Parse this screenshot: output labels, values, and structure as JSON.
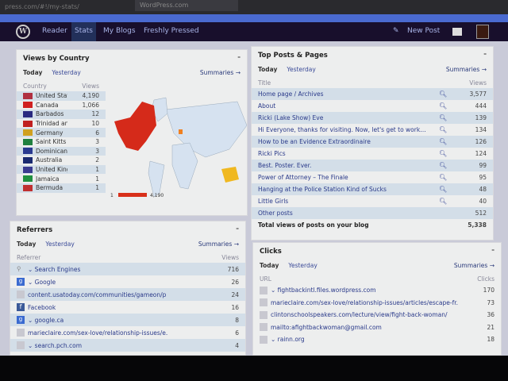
{
  "browser": {
    "url": "press.com/#!/my-stats/",
    "tab_title": "WordPress.com"
  },
  "nav": {
    "logo": "W",
    "items": [
      "Reader",
      "Stats",
      "My Blogs",
      "Freshly Pressed"
    ],
    "new_post": "New Post"
  },
  "country": {
    "title": "Views by Country",
    "today": "Today",
    "yesterday": "Yesterday",
    "summaries": "Summaries →",
    "col_country": "Country",
    "col_views": "Views",
    "rows": [
      {
        "name": "United States",
        "views": "4,190",
        "flag": "#b03040"
      },
      {
        "name": "Canada",
        "views": "1,066",
        "flag": "#d02020"
      },
      {
        "name": "Barbados",
        "views": "12",
        "flag": "#2a2a80"
      },
      {
        "name": "Trinidad and T-",
        "views": "10",
        "flag": "#c02020"
      },
      {
        "name": "Germany",
        "views": "6",
        "flag": "#d0a020"
      },
      {
        "name": "Saint Kitts and",
        "views": "3",
        "flag": "#208040"
      },
      {
        "name": "Dominican Rep",
        "views": "3",
        "flag": "#2a3a90"
      },
      {
        "name": "Australia",
        "views": "2",
        "flag": "#1a2a70"
      },
      {
        "name": "United Kingdor",
        "views": "1",
        "flag": "#3a3a90"
      },
      {
        "name": "Jamaica",
        "views": "1",
        "flag": "#209040"
      },
      {
        "name": "Bermuda",
        "views": "1",
        "flag": "#c03030"
      }
    ],
    "legend_min": "1",
    "legend_max": "4,190"
  },
  "posts": {
    "title": "Top Posts & Pages",
    "today": "Today",
    "yesterday": "Yesterday",
    "summaries": "Summaries →",
    "col_title": "Title",
    "col_views": "Views",
    "rows": [
      {
        "title": "Home page / Archives",
        "views": "3,577"
      },
      {
        "title": "About",
        "views": "444"
      },
      {
        "title": "Ricki (Lake Show) Eve",
        "views": "139"
      },
      {
        "title": "Hi Everyone, thanks for visiting. Now, let's get to work…",
        "views": "134"
      },
      {
        "title": "How to be an Evidence Extraordinaire",
        "views": "126"
      },
      {
        "title": "Ricki Pics",
        "views": "124"
      },
      {
        "title": "Best. Poster. Ever.",
        "views": "99"
      },
      {
        "title": "Power of Attorney – The Finale",
        "views": "95"
      },
      {
        "title": "Hanging at the Police Station Kind of Sucks",
        "views": "48"
      },
      {
        "title": "Little Girls",
        "views": "40"
      }
    ],
    "other_label": "Other posts",
    "other_views": "512",
    "total_label": "Total views of posts on your blog",
    "total_views": "5,338"
  },
  "referrers": {
    "title": "Referrers",
    "today": "Today",
    "yesterday": "Yesterday",
    "summaries": "Summaries →",
    "col_ref": "Referrer",
    "col_views": "Views",
    "rows": [
      {
        "icon": "search",
        "name": "⌄ Search Engines",
        "views": "716"
      },
      {
        "icon": "google",
        "name": "⌄ Google",
        "views": "26"
      },
      {
        "icon": "blank",
        "name": "content.usatoday.com/communities/gameon/p",
        "views": "24"
      },
      {
        "icon": "facebook",
        "name": "Facebook",
        "views": "16"
      },
      {
        "icon": "google",
        "name": "⌄ google.ca",
        "views": "8"
      },
      {
        "icon": "blank",
        "name": "marieclaire.com/sex-love/relationship-issues/e.",
        "views": "6"
      },
      {
        "icon": "blank",
        "name": "⌄ search.pch.com",
        "views": "4"
      }
    ]
  },
  "clicks": {
    "title": "Clicks",
    "today": "Today",
    "yesterday": "Yesterday",
    "summaries": "Summaries →",
    "col_url": "URL",
    "col_clicks": "Clicks",
    "rows": [
      {
        "name": "⌄ fightbackintl.files.wordpress.com",
        "views": "170"
      },
      {
        "name": "marieclaire.com/sex-love/relationship-issues/articles/escape-fr.",
        "views": "73"
      },
      {
        "name": "clintonschoolspeakers.com/lecture/view/fight-back-woman/",
        "views": "36"
      },
      {
        "name": "mailto:afightbackwoman@gmail.com",
        "views": "21"
      },
      {
        "name": "⌄ rainn.org",
        "views": "18"
      }
    ]
  }
}
